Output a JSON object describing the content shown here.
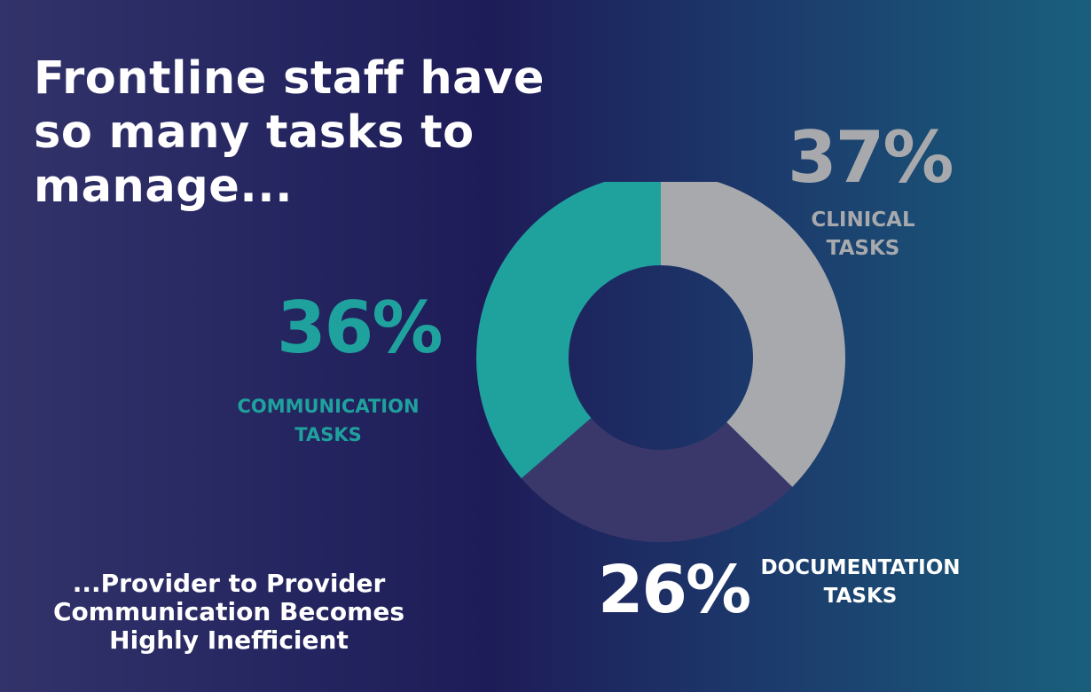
{
  "headline": "Frontline staff have so many tasks to manage...",
  "subline": "...Provider to Provider Communication Becomes Highly Inefficient",
  "chart_data": {
    "type": "pie",
    "variant": "donut",
    "title": "",
    "series": [
      {
        "category": "CLINICAL TASKS",
        "percent_label": "37%",
        "value": 37,
        "color": "#a7a9ad",
        "text_color": "#a7a9ad"
      },
      {
        "category": "DOCUMENTATION TASKS",
        "percent_label": "26%",
        "value": 26,
        "color": "#3a386b",
        "text_color": "#ffffff"
      },
      {
        "category": "COMMUNICATION TASKS",
        "percent_label": "36%",
        "value": 36,
        "color": "#1fa19d",
        "text_color": "#1fa19d"
      }
    ]
  }
}
